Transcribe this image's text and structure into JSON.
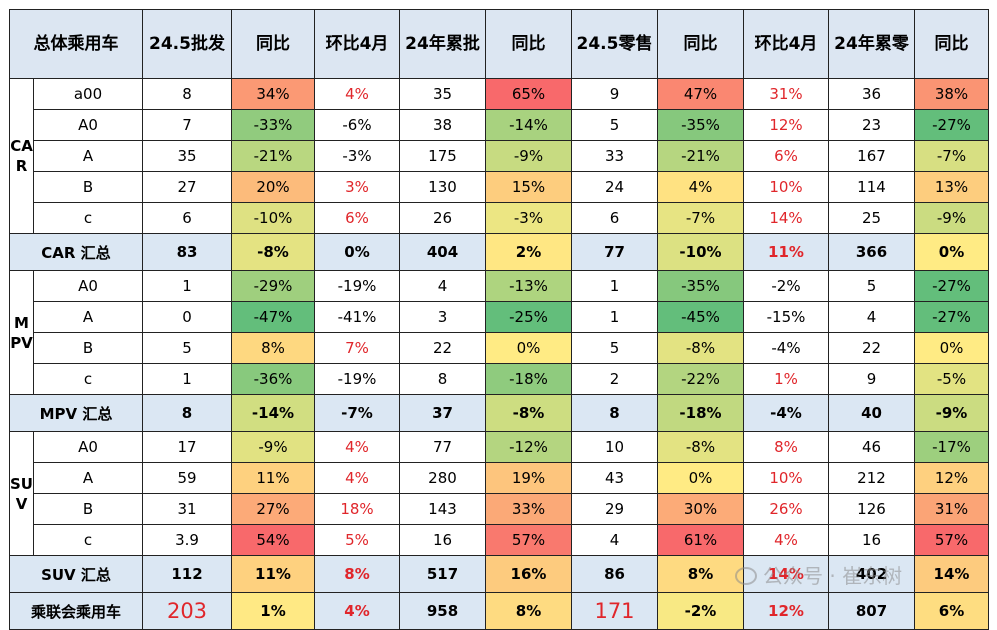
{
  "colors": {
    "header_bg": "#dce6f2",
    "summary_bg": "#dbe7f3",
    "red_text": "#e0262b",
    "scale_low": "#63be7b",
    "scale_mid": "#ffeb84",
    "scale_high": "#f8696b"
  },
  "header": [
    "总体乘用车",
    "24.5批发",
    "同比",
    "环比4月",
    "24年累批",
    "同比",
    "24.5零售",
    "同比",
    "环比4月",
    "24年累零",
    "同比"
  ],
  "groups": [
    {
      "label": "CAR",
      "rows": [
        [
          "a00",
          "8",
          "34%",
          "4%",
          "35",
          "65%",
          "9",
          "47%",
          "31%",
          "36",
          "38%"
        ],
        [
          "A0",
          "7",
          "-33%",
          "-6%",
          "38",
          "-14%",
          "5",
          "-35%",
          "12%",
          "23",
          "-27%"
        ],
        [
          "A",
          "35",
          "-21%",
          "-3%",
          "175",
          "-9%",
          "33",
          "-21%",
          "6%",
          "167",
          "-7%"
        ],
        [
          "B",
          "27",
          "20%",
          "3%",
          "130",
          "15%",
          "24",
          "4%",
          "10%",
          "114",
          "13%"
        ],
        [
          "c",
          "6",
          "-10%",
          "6%",
          "26",
          "-3%",
          "6",
          "-7%",
          "14%",
          "25",
          "-9%"
        ]
      ],
      "summary": [
        "CAR 汇总",
        "83",
        "-8%",
        "0%",
        "404",
        "2%",
        "77",
        "-10%",
        "11%",
        "366",
        "0%"
      ]
    },
    {
      "label": "MPV",
      "rows": [
        [
          "A0",
          "1",
          "-29%",
          "-19%",
          "4",
          "-13%",
          "1",
          "-35%",
          "-2%",
          "5",
          "-27%"
        ],
        [
          "A",
          "0",
          "-47%",
          "-41%",
          "3",
          "-25%",
          "1",
          "-45%",
          "-15%",
          "4",
          "-27%"
        ],
        [
          "B",
          "5",
          "8%",
          "7%",
          "22",
          "0%",
          "5",
          "-8%",
          "-4%",
          "22",
          "0%"
        ],
        [
          "c",
          "1",
          "-36%",
          "-19%",
          "8",
          "-18%",
          "2",
          "-22%",
          "1%",
          "9",
          "-5%"
        ]
      ],
      "summary": [
        "MPV 汇总",
        "8",
        "-14%",
        "-7%",
        "37",
        "-8%",
        "8",
        "-18%",
        "-4%",
        "40",
        "-9%"
      ]
    },
    {
      "label": "SUV",
      "rows": [
        [
          "A0",
          "17",
          "-9%",
          "4%",
          "77",
          "-12%",
          "10",
          "-8%",
          "8%",
          "46",
          "-17%"
        ],
        [
          "A",
          "59",
          "11%",
          "4%",
          "280",
          "19%",
          "43",
          "0%",
          "10%",
          "212",
          "12%"
        ],
        [
          "B",
          "31",
          "27%",
          "18%",
          "143",
          "33%",
          "29",
          "30%",
          "26%",
          "126",
          "31%"
        ],
        [
          "c",
          "3.9",
          "54%",
          "5%",
          "16",
          "57%",
          "4",
          "61%",
          "4%",
          "16",
          "57%"
        ]
      ],
      "summary": [
        "SUV 汇总",
        "112",
        "11%",
        "8%",
        "517",
        "16%",
        "86",
        "8%",
        "14%",
        "402",
        "14%"
      ]
    }
  ],
  "total": [
    "乘联会乘用车",
    "203",
    "1%",
    "4%",
    "958",
    "8%",
    "171",
    "-2%",
    "12%",
    "807",
    "6%"
  ],
  "watermark": "公众号 · 崔东树"
}
